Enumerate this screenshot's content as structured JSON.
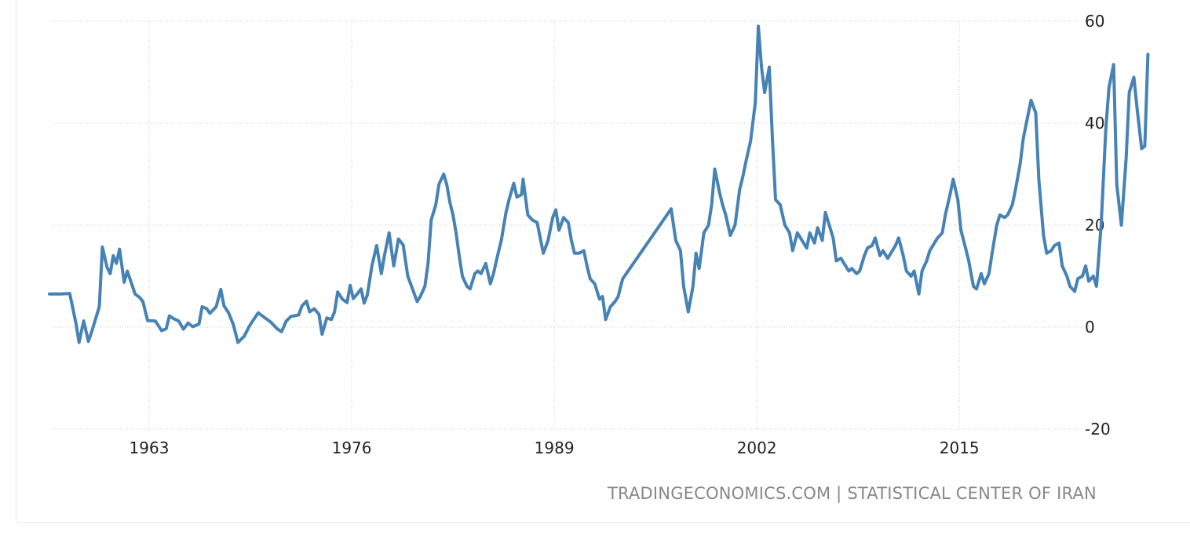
{
  "chart_data": {
    "type": "line",
    "title": "",
    "xlabel": "",
    "ylabel": "",
    "xlim": [
      1956.6,
      2023.8
    ],
    "ylim": [
      -20,
      60
    ],
    "x_ticks": [
      1963,
      1976,
      1989,
      2002,
      2015
    ],
    "x_tick_labels": [
      "1963",
      "1976",
      "1989",
      "2002",
      "2015"
    ],
    "y_ticks": [
      60,
      40,
      20,
      0,
      -20
    ],
    "y_tick_labels": [
      "60",
      "40",
      "20",
      "0",
      "-20"
    ],
    "grid": true,
    "y_axis_position": "right",
    "series": [
      {
        "color": "#4682b4",
        "points": [
          [
            1956.6,
            6.5
          ],
          [
            1957.3,
            6.5
          ],
          [
            1957.9,
            6.6
          ],
          [
            1958.3,
            0.8
          ],
          [
            1958.5,
            -3.0
          ],
          [
            1958.8,
            1.2
          ],
          [
            1959.1,
            -2.8
          ],
          [
            1959.3,
            -1.0
          ],
          [
            1959.8,
            4.0
          ],
          [
            1960.0,
            15.7
          ],
          [
            1960.3,
            11.7
          ],
          [
            1960.5,
            10.5
          ],
          [
            1960.7,
            14.0
          ],
          [
            1960.9,
            12.5
          ],
          [
            1961.1,
            15.3
          ],
          [
            1961.4,
            8.8
          ],
          [
            1961.6,
            11.0
          ],
          [
            1962.1,
            6.5
          ],
          [
            1962.4,
            5.8
          ],
          [
            1962.6,
            5.0
          ],
          [
            1962.9,
            1.3
          ],
          [
            1963.4,
            1.2
          ],
          [
            1963.8,
            -0.7
          ],
          [
            1964.1,
            -0.3
          ],
          [
            1964.3,
            2.2
          ],
          [
            1964.6,
            1.6
          ],
          [
            1964.9,
            1.2
          ],
          [
            1965.2,
            -0.4
          ],
          [
            1965.5,
            0.8
          ],
          [
            1965.8,
            0.1
          ],
          [
            1966.2,
            0.6
          ],
          [
            1966.4,
            4.0
          ],
          [
            1966.7,
            3.6
          ],
          [
            1966.9,
            2.7
          ],
          [
            1967.3,
            4.0
          ],
          [
            1967.6,
            7.4
          ],
          [
            1967.8,
            4.2
          ],
          [
            1968.1,
            2.8
          ],
          [
            1968.4,
            0.5
          ],
          [
            1968.7,
            -3.0
          ],
          [
            1969.1,
            -1.8
          ],
          [
            1969.4,
            0.0
          ],
          [
            1969.6,
            1.0
          ],
          [
            1970.0,
            2.8
          ],
          [
            1970.4,
            1.9
          ],
          [
            1970.8,
            1.0
          ],
          [
            1971.2,
            -0.3
          ],
          [
            1971.5,
            -0.9
          ],
          [
            1971.8,
            1.2
          ],
          [
            1972.1,
            2.1
          ],
          [
            1972.6,
            2.4
          ],
          [
            1972.8,
            4.1
          ],
          [
            1973.1,
            5.1
          ],
          [
            1973.3,
            3.0
          ],
          [
            1973.6,
            3.6
          ],
          [
            1973.9,
            2.5
          ],
          [
            1974.1,
            -1.4
          ],
          [
            1974.4,
            1.8
          ],
          [
            1974.7,
            1.5
          ],
          [
            1974.9,
            3.0
          ],
          [
            1975.1,
            6.9
          ],
          [
            1975.4,
            5.5
          ],
          [
            1975.7,
            4.8
          ],
          [
            1975.9,
            8.2
          ],
          [
            1976.1,
            5.6
          ],
          [
            1976.3,
            6.3
          ],
          [
            1976.6,
            7.5
          ],
          [
            1976.8,
            4.7
          ],
          [
            1977.0,
            6.3
          ],
          [
            1977.3,
            12.1
          ],
          [
            1977.6,
            16.0
          ],
          [
            1977.9,
            10.5
          ],
          [
            1978.1,
            14.0
          ],
          [
            1978.4,
            18.5
          ],
          [
            1978.7,
            12.0
          ],
          [
            1978.9,
            15.5
          ],
          [
            1979.0,
            17.3
          ],
          [
            1979.3,
            16.1
          ],
          [
            1979.6,
            10.0
          ],
          [
            1979.9,
            7.5
          ],
          [
            1980.2,
            5.0
          ],
          [
            1980.4,
            6.0
          ],
          [
            1980.7,
            8.0
          ],
          [
            1980.9,
            12.5
          ],
          [
            1981.1,
            21.0
          ],
          [
            1981.4,
            24.0
          ],
          [
            1981.6,
            28.0
          ],
          [
            1981.9,
            30.0
          ],
          [
            1982.1,
            28.0
          ],
          [
            1982.3,
            24.5
          ],
          [
            1982.5,
            22.0
          ],
          [
            1982.7,
            18.5
          ],
          [
            1982.9,
            14.0
          ],
          [
            1983.1,
            10.0
          ],
          [
            1983.4,
            8.0
          ],
          [
            1983.6,
            7.5
          ],
          [
            1983.9,
            10.5
          ],
          [
            1984.1,
            11.0
          ],
          [
            1984.3,
            10.5
          ],
          [
            1984.6,
            12.5
          ],
          [
            1984.9,
            8.5
          ],
          [
            1985.1,
            10.5
          ],
          [
            1985.4,
            14.5
          ],
          [
            1985.6,
            17.0
          ],
          [
            1985.9,
            22.5
          ],
          [
            1986.1,
            25.0
          ],
          [
            1986.4,
            28.2
          ],
          [
            1986.6,
            25.5
          ],
          [
            1986.9,
            26.0
          ],
          [
            1987.0,
            29.0
          ],
          [
            1987.3,
            22.0
          ],
          [
            1987.6,
            21.0
          ],
          [
            1987.9,
            20.5
          ],
          [
            1988.1,
            17.5
          ],
          [
            1988.3,
            14.5
          ],
          [
            1988.6,
            17.0
          ],
          [
            1988.9,
            21.5
          ],
          [
            1989.1,
            23.0
          ],
          [
            1989.3,
            19.0
          ],
          [
            1989.6,
            21.5
          ],
          [
            1989.9,
            20.5
          ],
          [
            1990.1,
            17.0
          ],
          [
            1990.3,
            14.5
          ],
          [
            1990.6,
            14.5
          ],
          [
            1990.9,
            15.0
          ],
          [
            1991.1,
            12.0
          ],
          [
            1991.3,
            9.5
          ],
          [
            1991.6,
            8.5
          ],
          [
            1991.9,
            5.5
          ],
          [
            1992.1,
            6.0
          ],
          [
            1992.3,
            1.5
          ],
          [
            1992.6,
            4.0
          ],
          [
            1992.9,
            5.0
          ],
          [
            1993.1,
            6.0
          ],
          [
            1993.3,
            8.5
          ],
          [
            1993.4,
            9.5
          ],
          [
            1996.5,
            23.2
          ],
          [
            1996.8,
            17.0
          ],
          [
            1997.1,
            15.0
          ],
          [
            1997.3,
            8.0
          ],
          [
            1997.6,
            3.0
          ],
          [
            1997.9,
            8.0
          ],
          [
            1998.1,
            14.5
          ],
          [
            1998.3,
            11.5
          ],
          [
            1998.6,
            18.5
          ],
          [
            1998.9,
            20.0
          ],
          [
            1999.1,
            24.0
          ],
          [
            1999.3,
            31.0
          ],
          [
            1999.6,
            26.5
          ],
          [
            1999.8,
            24.0
          ],
          [
            2000.0,
            22.0
          ],
          [
            2000.3,
            18.0
          ],
          [
            2000.6,
            20.0
          ],
          [
            2000.9,
            27.0
          ],
          [
            2001.1,
            29.5
          ],
          [
            2001.3,
            32.5
          ],
          [
            2001.6,
            36.5
          ],
          [
            2001.9,
            44.0
          ],
          [
            2002.1,
            59.0
          ],
          [
            2002.3,
            51.0
          ],
          [
            2002.5,
            46.0
          ],
          [
            2002.8,
            51.0
          ],
          [
            2003.0,
            37.0
          ],
          [
            2003.2,
            25.0
          ],
          [
            2003.5,
            24.0
          ],
          [
            2003.8,
            20.0
          ],
          [
            2004.1,
            18.5
          ],
          [
            2004.3,
            15.0
          ],
          [
            2004.6,
            18.5
          ],
          [
            2004.9,
            17.0
          ],
          [
            2005.2,
            15.5
          ],
          [
            2005.4,
            18.5
          ],
          [
            2005.7,
            16.5
          ],
          [
            2005.9,
            19.5
          ],
          [
            2006.2,
            17.0
          ],
          [
            2006.4,
            22.5
          ],
          [
            2006.7,
            19.5
          ],
          [
            2006.9,
            17.5
          ],
          [
            2007.1,
            13.0
          ],
          [
            2007.4,
            13.5
          ],
          [
            2007.6,
            12.5
          ],
          [
            2007.9,
            11.0
          ],
          [
            2008.1,
            11.5
          ],
          [
            2008.4,
            10.5
          ],
          [
            2008.6,
            11.0
          ],
          [
            2008.9,
            14.0
          ],
          [
            2009.1,
            15.5
          ],
          [
            2009.4,
            16.0
          ],
          [
            2009.6,
            17.5
          ],
          [
            2009.9,
            14.0
          ],
          [
            2010.1,
            15.0
          ],
          [
            2010.4,
            13.5
          ],
          [
            2010.6,
            14.5
          ],
          [
            2010.9,
            16.0
          ],
          [
            2011.1,
            17.5
          ],
          [
            2011.4,
            14.0
          ],
          [
            2011.6,
            11.0
          ],
          [
            2011.9,
            10.0
          ],
          [
            2012.1,
            11.0
          ],
          [
            2012.4,
            6.5
          ],
          [
            2012.6,
            11.0
          ],
          [
            2012.9,
            13.0
          ],
          [
            2013.1,
            15.0
          ],
          [
            2013.4,
            16.5
          ],
          [
            2013.6,
            17.5
          ],
          [
            2013.9,
            18.5
          ],
          [
            2014.1,
            22.0
          ],
          [
            2014.4,
            26.0
          ],
          [
            2014.6,
            29.0
          ],
          [
            2014.9,
            25.0
          ],
          [
            2015.1,
            19.0
          ],
          [
            2015.4,
            15.5
          ],
          [
            2015.6,
            13.0
          ],
          [
            2015.9,
            8.0
          ],
          [
            2016.1,
            7.5
          ],
          [
            2016.4,
            10.5
          ],
          [
            2016.6,
            8.5
          ],
          [
            2016.9,
            10.5
          ],
          [
            2017.1,
            14.5
          ],
          [
            2017.4,
            20.0
          ],
          [
            2017.6,
            22.0
          ],
          [
            2017.9,
            21.5
          ],
          [
            2018.1,
            22.0
          ],
          [
            2018.4,
            24.0
          ],
          [
            2018.6,
            27.0
          ],
          [
            2018.9,
            32.0
          ],
          [
            2019.1,
            37.0
          ],
          [
            2019.4,
            41.5
          ],
          [
            2019.6,
            44.5
          ],
          [
            2019.9,
            42.0
          ],
          [
            2020.1,
            29.0
          ],
          [
            2020.4,
            18.0
          ],
          [
            2020.6,
            14.5
          ],
          [
            2020.9,
            15.0
          ],
          [
            2021.1,
            16.0
          ],
          [
            2021.4,
            16.5
          ],
          [
            2021.6,
            12.0
          ],
          [
            2021.9,
            10.0
          ],
          [
            2022.1,
            8.0
          ],
          [
            2022.4,
            7.0
          ],
          [
            2022.6,
            9.5
          ],
          [
            2022.9,
            10.0
          ],
          [
            2023.1,
            12.0
          ],
          [
            2023.3,
            9.0
          ],
          [
            2023.6,
            10.0
          ],
          [
            2023.8,
            8.0
          ],
          [
            2024.1,
            20.0
          ],
          [
            2024.4,
            39.0
          ],
          [
            2024.6,
            47.0
          ],
          [
            2024.9,
            51.5
          ],
          [
            2025.1,
            28.0
          ],
          [
            2025.4,
            20.0
          ],
          [
            2025.7,
            33.0
          ],
          [
            2025.9,
            46.0
          ],
          [
            2026.2,
            49.0
          ],
          [
            2026.4,
            43.0
          ],
          [
            2026.7,
            35.0
          ],
          [
            2026.9,
            35.5
          ],
          [
            2027.1,
            53.5
          ]
        ]
      }
    ]
  },
  "source": {
    "site": "TRADINGECONOMICS.COM",
    "separator": "|",
    "publisher": "STATISTICAL CENTER OF IRAN"
  }
}
